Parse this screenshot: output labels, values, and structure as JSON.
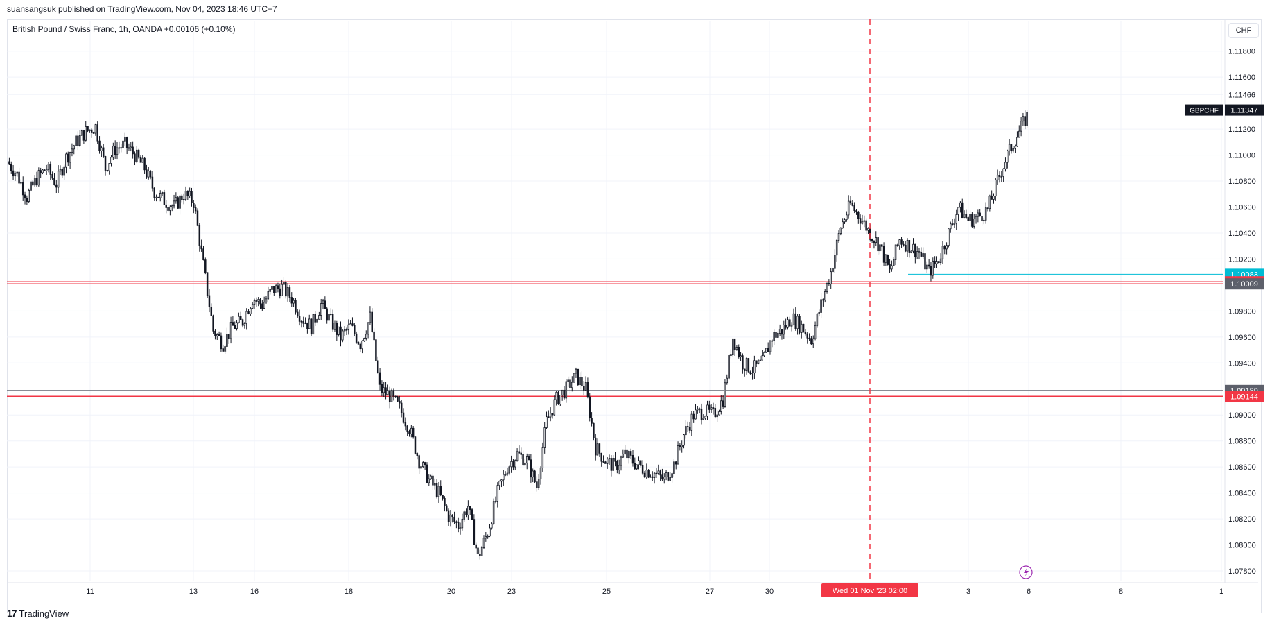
{
  "header": {
    "publish_text": "suansangsuk published on TradingView.com, Nov 04, 2023 18:46 UTC+7",
    "symbol_line": "British Pound / Swiss Franc, 1h, OANDA  +0.00106 (+0.10%)",
    "currency": "CHF"
  },
  "footer": {
    "brand": "TradingView",
    "logo": "17"
  },
  "colors": {
    "candle": "#131722",
    "red_line": "#f23645",
    "gray_line": "#787b86",
    "cyan_line": "#00bcd4",
    "crosshair": "#f23645"
  },
  "chart_data": {
    "type": "candlestick",
    "symbol": "GBPCHF",
    "last_price": "1.11347",
    "ylim": [
      1.0772,
      1.1198
    ],
    "y_ticks": [
      "1.11800",
      "1.11600",
      "1.11466",
      "1.11200",
      "1.11000",
      "1.10800",
      "1.10600",
      "1.10400",
      "1.10200",
      "1.09800",
      "1.09600",
      "1.09400",
      "1.09000",
      "1.08800",
      "1.08600",
      "1.08400",
      "1.08200",
      "1.08000",
      "1.07800"
    ],
    "x_ticks": [
      "11",
      "13",
      "16",
      "18",
      "20",
      "23",
      "25",
      "27",
      "30",
      "3",
      "6",
      "8",
      "1"
    ],
    "crosshair_label": "Wed 01 Nov '23   02:00",
    "price_labels": [
      {
        "value": "1.10083",
        "color": "#00bcd4"
      },
      {
        "value": "1.10025",
        "color": "#f23645"
      },
      {
        "value": "1.10009",
        "color": "#5d606b"
      },
      {
        "value": "1.09189",
        "color": "#5d606b"
      },
      {
        "value": "1.09144",
        "color": "#f23645"
      }
    ],
    "horizontal_lines": [
      {
        "price": 1.10025,
        "color": "#f23645"
      },
      {
        "price": 1.10009,
        "color": "#f23645"
      },
      {
        "price": 1.09189,
        "color": "#787b86"
      },
      {
        "price": 1.09144,
        "color": "#f23645"
      }
    ],
    "cyan_segment": {
      "price": 1.10083
    },
    "path": [
      1.1095,
      1.1085,
      1.1068,
      1.1082,
      1.109,
      1.1078,
      1.1098,
      1.111,
      1.1118,
      1.1122,
      1.109,
      1.1105,
      1.1108,
      1.11,
      1.109,
      1.1072,
      1.1065,
      1.106,
      1.107,
      1.1064,
      1.1015,
      1.0965,
      1.0955,
      1.0968,
      1.0972,
      1.099,
      1.0985,
      1.0996,
      1.0998,
      1.099,
      1.0975,
      1.0968,
      1.0985,
      1.0972,
      1.096,
      1.0968,
      1.0955,
      1.0975,
      1.092,
      1.0915,
      1.0905,
      1.089,
      1.0865,
      1.085,
      1.084,
      1.0822,
      1.0815,
      1.083,
      1.079,
      1.081,
      1.084,
      1.086,
      1.087,
      1.0865,
      1.0845,
      1.0895,
      1.0912,
      1.092,
      1.093,
      1.092,
      1.0875,
      1.0865,
      1.086,
      1.087,
      1.0863,
      1.0858,
      1.0855,
      1.085,
      1.0862,
      1.0885,
      1.09,
      1.0903,
      1.09,
      1.0912,
      1.096,
      1.094,
      1.0935,
      1.094,
      1.096,
      1.0965,
      1.0975,
      1.0968,
      1.0958,
      1.0985,
      1.101,
      1.1045,
      1.1062,
      1.1052,
      1.104,
      1.103,
      1.101,
      1.1035,
      1.103,
      1.1025,
      1.101,
      1.102,
      1.104,
      1.106,
      1.105,
      1.1052,
      1.1058,
      1.108,
      1.11,
      1.1115,
      1.113
    ]
  }
}
